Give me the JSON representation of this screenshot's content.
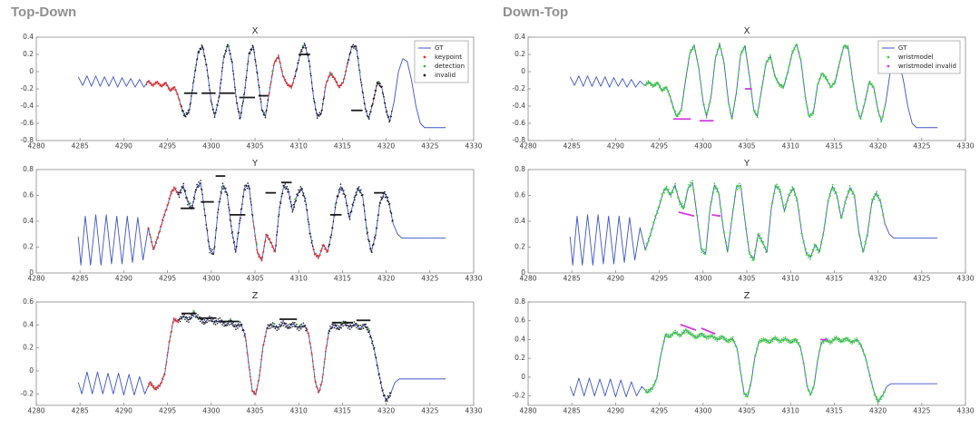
{
  "panels": [
    {
      "title": "Top-Down"
    },
    {
      "title": "Down-Top"
    }
  ],
  "colors": {
    "gt": "#3d54c9",
    "keypoint": "#e53229",
    "detection": "#3db54a",
    "invalid": "#1a1a1a",
    "wristmodel": "#41d43f",
    "wristmodel_invalid": "#d63be0",
    "axis": "#8a8a8a",
    "tick_text": "#3c3c3c"
  },
  "series": {
    "gt_x": [
      [
        4284.8,
        -0.06
      ],
      [
        4285.3,
        -0.16
      ],
      [
        4285.8,
        -0.05
      ],
      [
        4286.3,
        -0.17
      ],
      [
        4286.8,
        -0.05
      ],
      [
        4287.3,
        -0.17
      ],
      [
        4287.8,
        -0.06
      ],
      [
        4288.3,
        -0.17
      ],
      [
        4288.8,
        -0.06
      ],
      [
        4289.3,
        -0.18
      ],
      [
        4289.8,
        -0.07
      ],
      [
        4290.3,
        -0.17
      ],
      [
        4290.8,
        -0.08
      ],
      [
        4291.3,
        -0.18
      ],
      [
        4291.8,
        -0.09
      ],
      [
        4292.3,
        -0.18
      ],
      [
        4292.8,
        -0.11
      ],
      [
        4293.3,
        -0.16
      ],
      [
        4293.8,
        -0.12
      ],
      [
        4294.3,
        -0.17
      ],
      [
        4294.8,
        -0.13
      ],
      [
        4295.3,
        -0.22
      ],
      [
        4295.8,
        -0.18
      ],
      [
        4296.2,
        -0.28
      ],
      [
        4296.6,
        -0.42
      ],
      [
        4297.0,
        -0.52
      ],
      [
        4297.5,
        -0.45
      ],
      [
        4298.0,
        -0.1
      ],
      [
        4298.5,
        0.22
      ],
      [
        4299.0,
        0.3
      ],
      [
        4299.5,
        0.05
      ],
      [
        4300.0,
        -0.35
      ],
      [
        4300.4,
        -0.52
      ],
      [
        4300.9,
        -0.3
      ],
      [
        4301.4,
        0.15
      ],
      [
        4301.9,
        0.32
      ],
      [
        4302.4,
        0.1
      ],
      [
        4302.9,
        -0.35
      ],
      [
        4303.3,
        -0.55
      ],
      [
        4303.8,
        -0.25
      ],
      [
        4304.3,
        0.2
      ],
      [
        4304.8,
        0.3
      ],
      [
        4305.3,
        -0.05
      ],
      [
        4305.8,
        -0.45
      ],
      [
        4306.2,
        -0.52
      ],
      [
        4306.7,
        -0.2
      ],
      [
        4307.2,
        0.1
      ],
      [
        4307.7,
        0.18
      ],
      [
        4308.2,
        -0.05
      ],
      [
        4308.7,
        -0.15
      ],
      [
        4309.2,
        -0.18
      ],
      [
        4309.7,
        0.0
      ],
      [
        4310.2,
        0.22
      ],
      [
        4310.7,
        0.32
      ],
      [
        4311.2,
        0.12
      ],
      [
        4311.7,
        -0.3
      ],
      [
        4312.1,
        -0.52
      ],
      [
        4312.6,
        -0.48
      ],
      [
        4313.1,
        -0.15
      ],
      [
        4313.6,
        -0.02
      ],
      [
        4314.1,
        -0.08
      ],
      [
        4314.6,
        -0.18
      ],
      [
        4315.1,
        -0.12
      ],
      [
        4315.6,
        0.1
      ],
      [
        4316.1,
        0.3
      ],
      [
        4316.6,
        0.28
      ],
      [
        4317.1,
        -0.1
      ],
      [
        4317.6,
        -0.42
      ],
      [
        4318.0,
        -0.55
      ],
      [
        4318.5,
        -0.35
      ],
      [
        4319.0,
        -0.12
      ],
      [
        4319.5,
        -0.18
      ],
      [
        4320.0,
        -0.45
      ],
      [
        4320.4,
        -0.58
      ],
      [
        4320.9,
        -0.35
      ],
      [
        4321.4,
        0.0
      ],
      [
        4321.9,
        0.15
      ],
      [
        4322.4,
        0.12
      ],
      [
        4322.9,
        -0.1
      ],
      [
        4323.4,
        -0.4
      ],
      [
        4323.9,
        -0.6
      ],
      [
        4324.4,
        -0.65
      ],
      [
        4325.2,
        -0.65
      ],
      [
        4326.0,
        -0.65
      ],
      [
        4326.8,
        -0.65
      ]
    ],
    "gt_y": [
      [
        4284.8,
        0.28
      ],
      [
        4285.1,
        0.06
      ],
      [
        4285.6,
        0.44
      ],
      [
        4286.2,
        0.06
      ],
      [
        4286.8,
        0.45
      ],
      [
        4287.4,
        0.06
      ],
      [
        4288.0,
        0.45
      ],
      [
        4288.6,
        0.07
      ],
      [
        4289.2,
        0.44
      ],
      [
        4289.8,
        0.07
      ],
      [
        4290.4,
        0.44
      ],
      [
        4291.0,
        0.08
      ],
      [
        4291.6,
        0.43
      ],
      [
        4292.2,
        0.1
      ],
      [
        4292.8,
        0.35
      ],
      [
        4293.4,
        0.18
      ],
      [
        4294.0,
        0.3
      ],
      [
        4294.5,
        0.42
      ],
      [
        4295.0,
        0.52
      ],
      [
        4295.4,
        0.62
      ],
      [
        4295.8,
        0.66
      ],
      [
        4296.3,
        0.6
      ],
      [
        4296.8,
        0.68
      ],
      [
        4297.3,
        0.55
      ],
      [
        4297.8,
        0.5
      ],
      [
        4298.3,
        0.66
      ],
      [
        4298.8,
        0.7
      ],
      [
        4299.3,
        0.45
      ],
      [
        4299.8,
        0.18
      ],
      [
        4300.3,
        0.15
      ],
      [
        4300.8,
        0.5
      ],
      [
        4301.3,
        0.68
      ],
      [
        4301.8,
        0.62
      ],
      [
        4302.3,
        0.35
      ],
      [
        4302.8,
        0.16
      ],
      [
        4303.3,
        0.42
      ],
      [
        4303.8,
        0.66
      ],
      [
        4304.3,
        0.68
      ],
      [
        4304.8,
        0.4
      ],
      [
        4305.3,
        0.15
      ],
      [
        4305.8,
        0.1
      ],
      [
        4306.3,
        0.3
      ],
      [
        4306.8,
        0.24
      ],
      [
        4307.3,
        0.16
      ],
      [
        4307.8,
        0.5
      ],
      [
        4308.3,
        0.68
      ],
      [
        4308.8,
        0.64
      ],
      [
        4309.3,
        0.48
      ],
      [
        4309.8,
        0.6
      ],
      [
        4310.3,
        0.66
      ],
      [
        4310.8,
        0.55
      ],
      [
        4311.3,
        0.3
      ],
      [
        4311.8,
        0.15
      ],
      [
        4312.3,
        0.12
      ],
      [
        4312.8,
        0.22
      ],
      [
        4313.3,
        0.16
      ],
      [
        4313.8,
        0.32
      ],
      [
        4314.3,
        0.56
      ],
      [
        4314.8,
        0.67
      ],
      [
        4315.3,
        0.6
      ],
      [
        4315.8,
        0.42
      ],
      [
        4316.3,
        0.56
      ],
      [
        4316.8,
        0.66
      ],
      [
        4317.3,
        0.6
      ],
      [
        4317.8,
        0.32
      ],
      [
        4318.3,
        0.16
      ],
      [
        4318.8,
        0.3
      ],
      [
        4319.3,
        0.55
      ],
      [
        4319.8,
        0.62
      ],
      [
        4320.3,
        0.55
      ],
      [
        4320.8,
        0.38
      ],
      [
        4321.3,
        0.3
      ],
      [
        4321.8,
        0.27
      ],
      [
        4322.8,
        0.27
      ],
      [
        4323.8,
        0.27
      ],
      [
        4324.8,
        0.27
      ],
      [
        4325.8,
        0.27
      ],
      [
        4326.8,
        0.27
      ]
    ],
    "gt_z": [
      [
        4284.8,
        -0.1
      ],
      [
        4285.2,
        -0.2
      ],
      [
        4285.8,
        -0.01
      ],
      [
        4286.4,
        -0.2
      ],
      [
        4287.0,
        -0.01
      ],
      [
        4287.6,
        -0.2
      ],
      [
        4288.2,
        -0.02
      ],
      [
        4288.8,
        -0.2
      ],
      [
        4289.4,
        -0.02
      ],
      [
        4290.0,
        -0.21
      ],
      [
        4290.6,
        -0.03
      ],
      [
        4291.2,
        -0.21
      ],
      [
        4291.8,
        -0.05
      ],
      [
        4292.4,
        -0.2
      ],
      [
        4293.0,
        -0.1
      ],
      [
        4293.6,
        -0.16
      ],
      [
        4294.2,
        -0.12
      ],
      [
        4294.7,
        -0.02
      ],
      [
        4295.2,
        0.25
      ],
      [
        4295.7,
        0.45
      ],
      [
        4296.2,
        0.43
      ],
      [
        4296.8,
        0.48
      ],
      [
        4297.4,
        0.44
      ],
      [
        4298.0,
        0.5
      ],
      [
        4298.6,
        0.46
      ],
      [
        4299.2,
        0.42
      ],
      [
        4299.8,
        0.46
      ],
      [
        4300.4,
        0.42
      ],
      [
        4301.0,
        0.44
      ],
      [
        4301.6,
        0.4
      ],
      [
        4302.2,
        0.43
      ],
      [
        4302.8,
        0.38
      ],
      [
        4303.4,
        0.41
      ],
      [
        4303.9,
        0.3
      ],
      [
        4304.3,
        0.05
      ],
      [
        4304.7,
        -0.18
      ],
      [
        4305.1,
        -0.2
      ],
      [
        4305.5,
        -0.05
      ],
      [
        4305.9,
        0.2
      ],
      [
        4306.4,
        0.38
      ],
      [
        4307.0,
        0.4
      ],
      [
        4307.6,
        0.37
      ],
      [
        4308.2,
        0.42
      ],
      [
        4308.8,
        0.38
      ],
      [
        4309.4,
        0.41
      ],
      [
        4310.0,
        0.37
      ],
      [
        4310.6,
        0.4
      ],
      [
        4311.1,
        0.33
      ],
      [
        4311.5,
        0.15
      ],
      [
        4311.9,
        -0.1
      ],
      [
        4312.3,
        -0.19
      ],
      [
        4312.7,
        -0.08
      ],
      [
        4313.1,
        0.18
      ],
      [
        4313.5,
        0.36
      ],
      [
        4314.0,
        0.4
      ],
      [
        4314.6,
        0.37
      ],
      [
        4315.2,
        0.42
      ],
      [
        4315.8,
        0.38
      ],
      [
        4316.4,
        0.41
      ],
      [
        4317.0,
        0.37
      ],
      [
        4317.6,
        0.4
      ],
      [
        4318.1,
        0.33
      ],
      [
        4318.6,
        0.2
      ],
      [
        4319.1,
        0.0
      ],
      [
        4319.6,
        -0.18
      ],
      [
        4320.0,
        -0.26
      ],
      [
        4320.5,
        -0.2
      ],
      [
        4321.0,
        -0.1
      ],
      [
        4321.5,
        -0.07
      ],
      [
        4322.5,
        -0.07
      ],
      [
        4323.5,
        -0.07
      ],
      [
        4324.5,
        -0.07
      ],
      [
        4325.5,
        -0.07
      ],
      [
        4326.8,
        -0.07
      ]
    ]
  },
  "chart_data": [
    {
      "type": "line",
      "title": "X",
      "panel": "Top-Down",
      "grid": false,
      "legend_position": "top-right",
      "xlim": [
        4280,
        4330
      ],
      "ylim": [
        -0.8,
        0.4
      ],
      "xticks": [
        4280,
        4285,
        4290,
        4295,
        4300,
        4305,
        4310,
        4315,
        4320,
        4325,
        4330
      ],
      "yticks": [
        -0.8,
        -0.6,
        -0.4,
        -0.2,
        0,
        0.2,
        0.4
      ],
      "gt": "gt_x",
      "keypoint_intervals": [
        [
          4292.6,
          4296.6
        ],
        [
          4306.5,
          4309.6
        ],
        [
          4312.9,
          4315.6
        ],
        [
          4318.4,
          4319.3
        ]
      ],
      "invalid_intervals": [
        [
          4296.6,
          4306.5
        ],
        [
          4309.6,
          4312.9
        ],
        [
          4315.6,
          4320.7
        ]
      ],
      "invalid_bars": [
        [
          4296.9,
          4298.4,
          -0.25
        ],
        [
          4298.9,
          4300.5,
          -0.25
        ],
        [
          4300.9,
          4302.7,
          -0.25
        ],
        [
          4303.2,
          4305.0,
          -0.3
        ],
        [
          4305.4,
          4306.5,
          -0.28
        ],
        [
          4310.0,
          4311.3,
          0.2
        ],
        [
          4316.0,
          4317.3,
          -0.45
        ]
      ],
      "detection_xs": [
        4298.2,
        4302.0,
        4307.0,
        4310.5,
        4313.8,
        4317.0,
        4319.2
      ],
      "legend": [
        {
          "label": "GT",
          "marker": "line",
          "color": "#3d54c9"
        },
        {
          "label": "keypoint",
          "marker": "dot",
          "color": "#e53229"
        },
        {
          "label": "detection",
          "marker": "dot",
          "color": "#3db54a"
        },
        {
          "label": "invalid",
          "marker": "dot",
          "color": "#1a1a1a"
        }
      ]
    },
    {
      "type": "line",
      "title": "Y",
      "panel": "Top-Down",
      "grid": false,
      "xlim": [
        4280,
        4330
      ],
      "ylim": [
        0,
        0.8
      ],
      "xticks": [
        4280,
        4285,
        4290,
        4295,
        4300,
        4305,
        4310,
        4315,
        4320,
        4325,
        4330
      ],
      "yticks": [
        0,
        0.2,
        0.4,
        0.6,
        0.8
      ],
      "gt": "gt_y",
      "keypoint_intervals": [
        [
          4292.8,
          4296.2
        ],
        [
          4304.8,
          4307.4
        ],
        [
          4311.6,
          4313.4
        ]
      ],
      "invalid_intervals": [
        [
          4296.2,
          4304.8
        ],
        [
          4307.4,
          4311.6
        ],
        [
          4313.4,
          4320.8
        ]
      ],
      "invalid_bars": [
        [
          4296.5,
          4298.1,
          0.5
        ],
        [
          4298.8,
          4300.3,
          0.55
        ],
        [
          4300.5,
          4301.6,
          0.75
        ],
        [
          4302.1,
          4303.9,
          0.45
        ],
        [
          4306.2,
          4307.4,
          0.62
        ],
        [
          4308.0,
          4309.2,
          0.7
        ],
        [
          4313.6,
          4314.9,
          0.45
        ],
        [
          4318.6,
          4319.8,
          0.62
        ]
      ],
      "detection_xs": [
        4297.6,
        4301.2,
        4305.2,
        4309.6,
        4314.2,
        4317.8
      ]
    },
    {
      "type": "line",
      "title": "Z",
      "panel": "Top-Down",
      "grid": false,
      "xlim": [
        4280,
        4330
      ],
      "ylim": [
        -0.3,
        0.6
      ],
      "xticks": [
        4280,
        4285,
        4290,
        4295,
        4300,
        4305,
        4310,
        4315,
        4320,
        4325,
        4330
      ],
      "yticks": [
        -0.2,
        0,
        0.2,
        0.4,
        0.6
      ],
      "gt": "gt_z",
      "keypoint_intervals": [
        [
          4292.8,
          4296.3
        ],
        [
          4303.9,
          4306.4
        ],
        [
          4310.9,
          4313.4
        ]
      ],
      "invalid_intervals": [
        [
          4296.3,
          4303.9
        ],
        [
          4306.4,
          4310.9
        ],
        [
          4313.4,
          4320.6
        ]
      ],
      "invalid_bars": [
        [
          4296.6,
          4298.2,
          0.5
        ],
        [
          4298.6,
          4300.6,
          0.46
        ],
        [
          4301.0,
          4303.2,
          0.43
        ],
        [
          4307.8,
          4309.8,
          0.45
        ],
        [
          4313.8,
          4316.2,
          0.42
        ],
        [
          4316.6,
          4318.2,
          0.44
        ]
      ],
      "detection_xs": [
        4298.0,
        4302.2,
        4307.2,
        4310.2,
        4315.0,
        4318.0
      ]
    },
    {
      "type": "line",
      "title": "X",
      "panel": "Down-Top",
      "grid": false,
      "legend_position": "top-right",
      "xlim": [
        4280,
        4330
      ],
      "ylim": [
        -0.8,
        0.4
      ],
      "xticks": [
        4280,
        4285,
        4290,
        4295,
        4300,
        4305,
        4310,
        4315,
        4320,
        4325,
        4330
      ],
      "yticks": [
        -0.8,
        -0.6,
        -0.4,
        -0.2,
        0,
        0.2,
        0.4
      ],
      "gt": "gt_x",
      "wrist_interval": [
        4293.4,
        4320.8
      ],
      "wrist_invalid_segments": [
        [
          4296.6,
          -0.55,
          4298.6,
          -0.55
        ],
        [
          4299.6,
          -0.57,
          4301.2,
          -0.57
        ],
        [
          4304.8,
          -0.2,
          4305.6,
          -0.2
        ]
      ],
      "legend": [
        {
          "label": "GT",
          "marker": "line",
          "color": "#3d54c9"
        },
        {
          "label": "wristmodel",
          "marker": "dot",
          "color": "#41d43f"
        },
        {
          "label": "wristmodel invalid",
          "marker": "dot",
          "color": "#d63be0"
        }
      ]
    },
    {
      "type": "line",
      "title": "Y",
      "panel": "Down-Top",
      "grid": false,
      "xlim": [
        4280,
        4330
      ],
      "ylim": [
        0,
        0.8
      ],
      "xticks": [
        4280,
        4285,
        4290,
        4295,
        4300,
        4305,
        4310,
        4315,
        4320,
        4325,
        4330
      ],
      "yticks": [
        0,
        0.2,
        0.4,
        0.6,
        0.8
      ],
      "gt": "gt_y",
      "wrist_interval": [
        4293.4,
        4320.8
      ],
      "wrist_invalid_segments": [
        [
          4297.2,
          0.47,
          4299.0,
          0.44
        ],
        [
          4301.0,
          0.45,
          4302.0,
          0.44
        ]
      ]
    },
    {
      "type": "line",
      "title": "Z",
      "panel": "Down-Top",
      "grid": false,
      "xlim": [
        4280,
        4330
      ],
      "ylim": [
        -0.3,
        0.8
      ],
      "xticks": [
        4280,
        4285,
        4290,
        4295,
        4300,
        4305,
        4310,
        4315,
        4320,
        4325,
        4330
      ],
      "yticks": [
        -0.2,
        0,
        0.2,
        0.4,
        0.6,
        0.8
      ],
      "gt": "gt_z",
      "wrist_interval": [
        4293.4,
        4320.8
      ],
      "wrist_invalid_segments": [
        [
          4297.4,
          0.56,
          4299.2,
          0.5
        ],
        [
          4299.8,
          0.52,
          4301.4,
          0.46
        ],
        [
          4313.4,
          0.4,
          4314.2,
          0.4
        ]
      ]
    }
  ]
}
